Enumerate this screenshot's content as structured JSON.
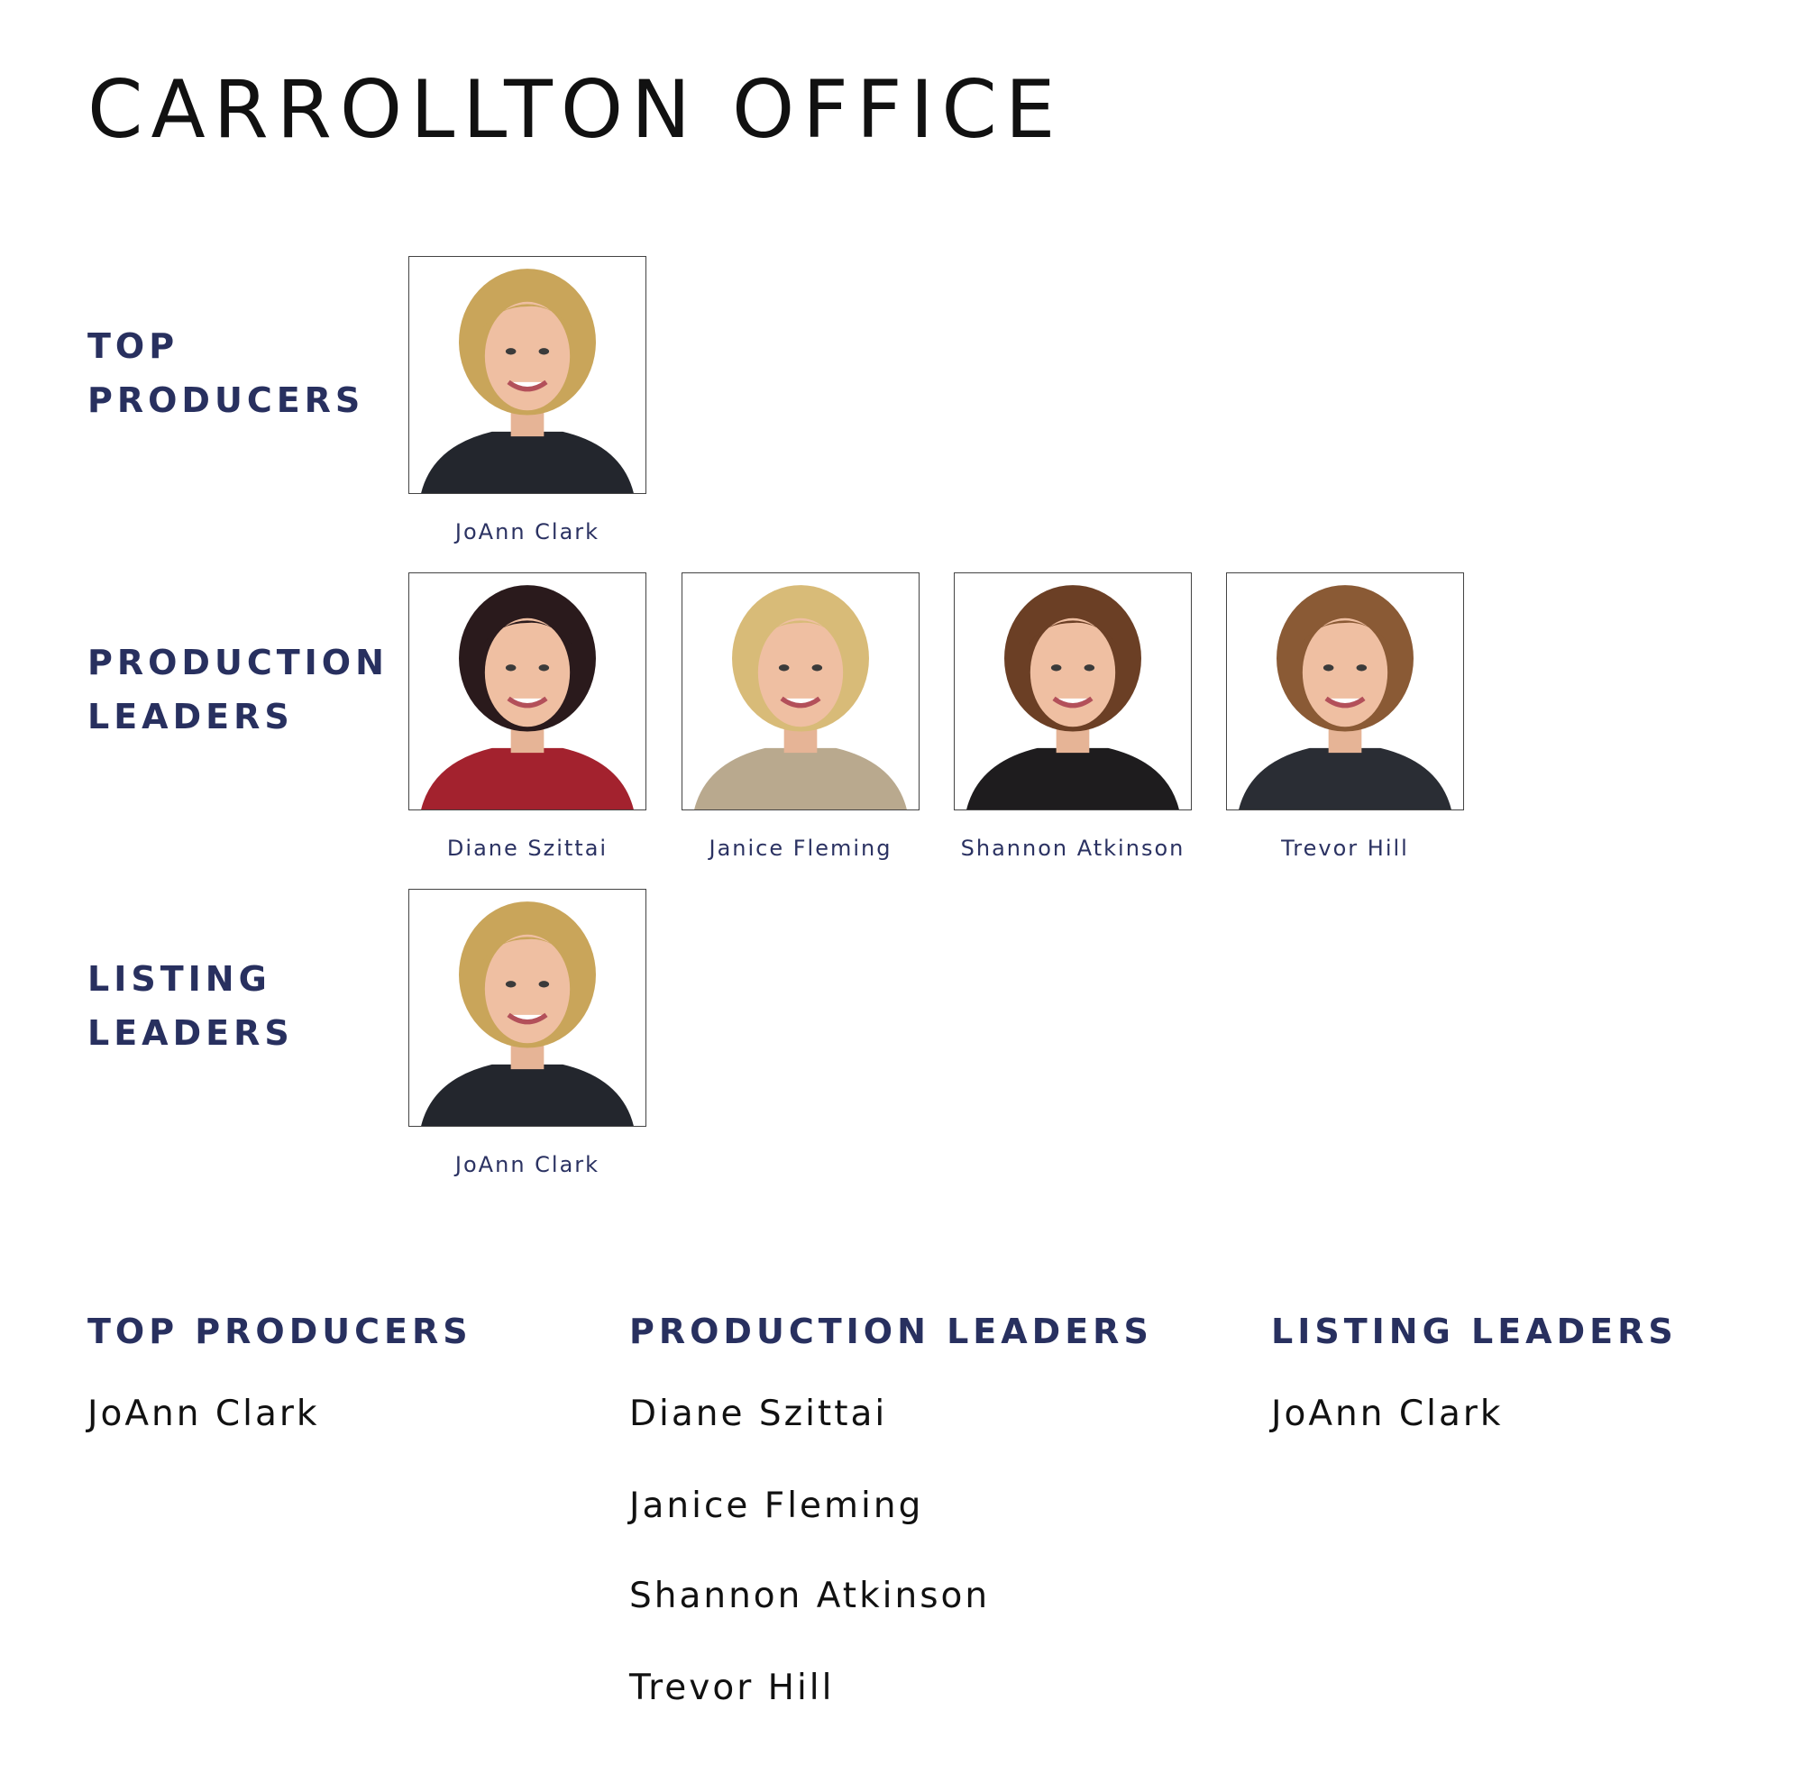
{
  "title": "CARROLLTON OFFICE",
  "sections": [
    {
      "label_line1": "TOP",
      "label_line2": "PRODUCERS",
      "people": [
        {
          "name": "JoAnn Clark",
          "hair": "#c9a55a",
          "top": "#23262d"
        }
      ]
    },
    {
      "label_line1": "PRODUCTION",
      "label_line2": "LEADERS",
      "people": [
        {
          "name": "Diane Szittai",
          "hair": "#2a1a1c",
          "top": "#a3222e"
        },
        {
          "name": "Janice Fleming",
          "hair": "#d8bb78",
          "top": "#b9a98e"
        },
        {
          "name": "Shannon Atkinson",
          "hair": "#6b3f25",
          "top": "#1e1c1e"
        },
        {
          "name": "Trevor Hill",
          "hair": "#8a5a35",
          "top": "#2a2d34"
        }
      ]
    },
    {
      "label_line1": "LISTING",
      "label_line2": "LEADERS",
      "people": [
        {
          "name": "JoAnn Clark",
          "hair": "#c9a55a",
          "top": "#23262d"
        }
      ]
    }
  ],
  "summary": [
    {
      "heading": "TOP PRODUCERS",
      "names": [
        "JoAnn Clark"
      ]
    },
    {
      "heading": "PRODUCTION LEADERS",
      "names": [
        "Diane Szittai",
        "Janice Fleming",
        "Shannon Atkinson",
        "Trevor Hill"
      ]
    },
    {
      "heading": "LISTING LEADERS",
      "names": [
        "JoAnn Clark"
      ]
    }
  ],
  "colors": {
    "accent": "#28305f",
    "text": "#111111"
  }
}
